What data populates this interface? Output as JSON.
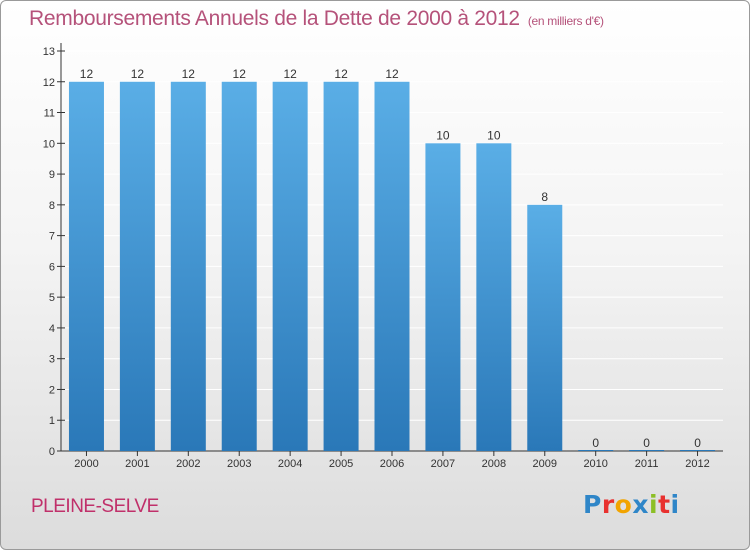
{
  "header": {
    "title": "Remboursements Annuels de la Dette de 2000 à 2012",
    "unit": "(en milliers d'€)"
  },
  "footer": {
    "commune": "PLEINE-SELVE",
    "logo": [
      "P",
      "r",
      "o",
      "x",
      "i",
      "t",
      "i"
    ],
    "logo_colors": [
      "#2f86c8",
      "#e8312f",
      "#f2a400",
      "#2f86c8",
      "#8cbf26",
      "#e8312f",
      "#2f86c8"
    ]
  },
  "colors": {
    "bar_light": "#5aaee6",
    "bar_dark": "#2a78b8",
    "axis": "#333333",
    "grid": "#ffffff",
    "text": "#333333"
  },
  "chart_data": {
    "type": "bar",
    "title": "Remboursements Annuels de la Dette de 2000 à 2012",
    "ylabel": "(en milliers d'€)",
    "xlabel": "",
    "categories": [
      "2000",
      "2001",
      "2002",
      "2003",
      "2004",
      "2005",
      "2006",
      "2007",
      "2008",
      "2009",
      "2010",
      "2011",
      "2012"
    ],
    "values": [
      12,
      12,
      12,
      12,
      12,
      12,
      12,
      10,
      10,
      8,
      0,
      0,
      0
    ],
    "ylim": [
      0,
      13
    ],
    "yticks": [
      0,
      1,
      2,
      3,
      4,
      5,
      6,
      7,
      8,
      9,
      10,
      11,
      12,
      13
    ],
    "grid": true,
    "legend": "none"
  }
}
